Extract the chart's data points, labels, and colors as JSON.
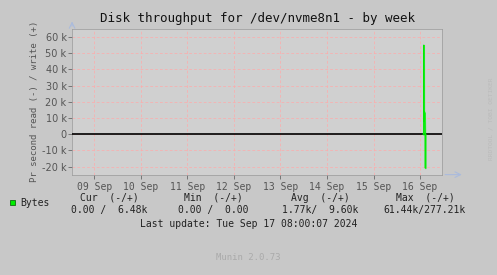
{
  "title": "Disk throughput for /dev/nvme8n1 - by week",
  "ylabel": "Pr second read (-) / write (+)",
  "background_color": "#c8c8c8",
  "plot_bg_color": "#d0d0d0",
  "grid_color": "#ffaaaa",
  "line_color": "#00ee00",
  "zero_line_color": "#000000",
  "ylim": [
    -25000,
    65000
  ],
  "yticks": [
    -20000,
    -10000,
    0,
    10000,
    20000,
    30000,
    40000,
    50000,
    60000
  ],
  "xlabel_dates": [
    "09 Sep",
    "10 Sep",
    "11 Sep",
    "12 Sep",
    "13 Sep",
    "14 Sep",
    "15 Sep",
    "16 Sep"
  ],
  "legend_label": "Bytes",
  "watermark": "RRDTOOL / TOBI OETIKER",
  "title_color": "#111111",
  "text_color": "#222222",
  "tick_color": "#555555",
  "footer_text_color": "#222222",
  "munin_color": "#aaaaaa",
  "spike_data": [
    [
      0.948,
      0
    ],
    [
      0.9495,
      0
    ],
    [
      0.95,
      55000
    ],
    [
      0.9505,
      8000
    ],
    [
      0.951,
      14000
    ],
    [
      0.9515,
      11000
    ],
    [
      0.952,
      9000
    ],
    [
      0.9525,
      13000
    ],
    [
      0.953,
      7000
    ],
    [
      0.9535,
      0
    ],
    [
      0.954,
      -21000
    ],
    [
      0.9545,
      0
    ]
  ]
}
